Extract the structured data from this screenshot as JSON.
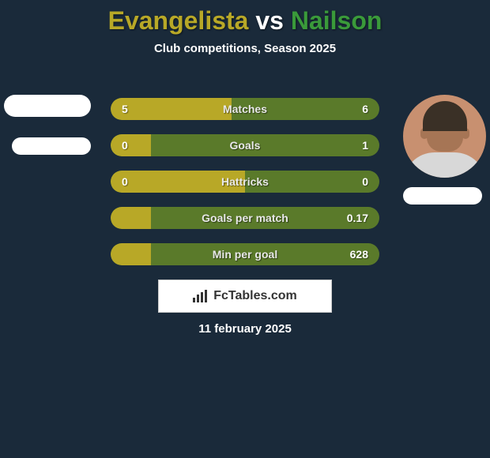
{
  "background_color": "#1a2a3a",
  "header": {
    "player1": "Evangelista",
    "player1_color": "#b8a827",
    "vs": "vs",
    "vs_color": "#ffffff",
    "player2": "Nailson",
    "player2_color": "#3a9a3a",
    "subtitle": "Club competitions, Season 2025"
  },
  "player1_avatar": {
    "pill1_color": "#ffffff",
    "pill2_color": "#ffffff"
  },
  "player2_avatar": {
    "skin": "#c89070",
    "face": "#a67555",
    "hair": "#3a3026",
    "body": "#d8d8d8",
    "pill_color": "#ffffff"
  },
  "bars": {
    "track_color": "#5a7a2a",
    "fill_color": "#b8a827",
    "rows": [
      {
        "label": "Matches",
        "left": "5",
        "right": "6",
        "fill_pct": 45
      },
      {
        "label": "Goals",
        "left": "0",
        "right": "1",
        "fill_pct": 15
      },
      {
        "label": "Hattricks",
        "left": "0",
        "right": "0",
        "fill_pct": 50
      },
      {
        "label": "Goals per match",
        "left": "",
        "right": "0.17",
        "fill_pct": 15
      },
      {
        "label": "Min per goal",
        "left": "",
        "right": "628",
        "fill_pct": 15
      }
    ]
  },
  "brand": {
    "text": "FcTables.com",
    "bg": "#ffffff",
    "text_color": "#333333",
    "icon_color": "#333333"
  },
  "date": "11 february 2025"
}
